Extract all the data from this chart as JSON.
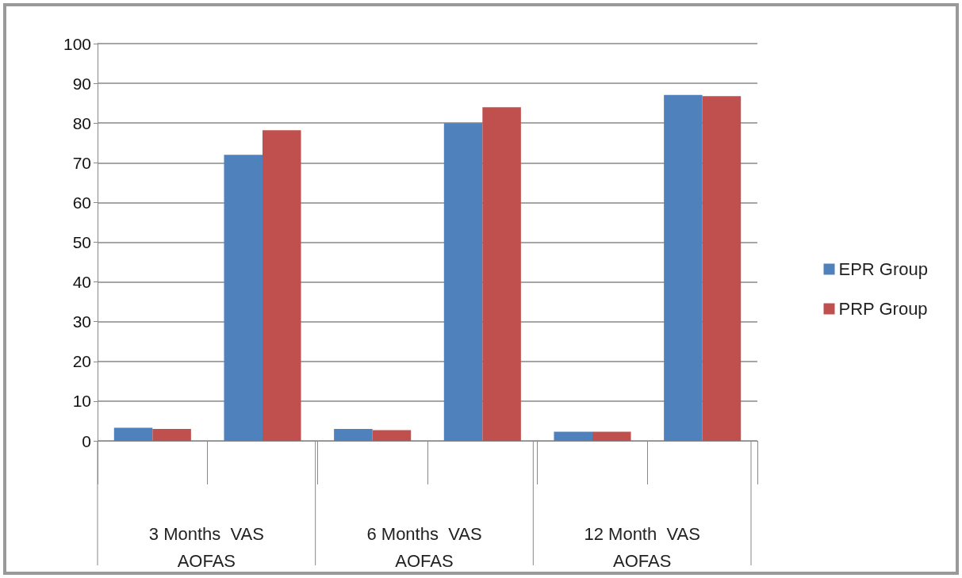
{
  "chart_data": {
    "type": "bar",
    "categories": [
      null,
      null,
      null,
      null,
      null,
      null
    ],
    "series": [
      {
        "name": "EPR Group",
        "color": "#4f81bd",
        "values": [
          3.3,
          72,
          3.0,
          80,
          2.3,
          87.1
        ]
      },
      {
        "name": "PRP Group",
        "color": "#c0504d",
        "values": [
          3.0,
          78.2,
          2.7,
          84,
          2.3,
          86.8
        ]
      }
    ],
    "ylim": [
      0,
      100
    ],
    "yticks": [
      0,
      10,
      20,
      30,
      40,
      50,
      60,
      70,
      80,
      90,
      100
    ],
    "grid": "y",
    "legend": "right",
    "annotations": [
      "3 Months  VAS\nAOFAS",
      "6 Months  VAS\nAOFAS",
      "12 Month  VAS\nAOFAS"
    ]
  }
}
